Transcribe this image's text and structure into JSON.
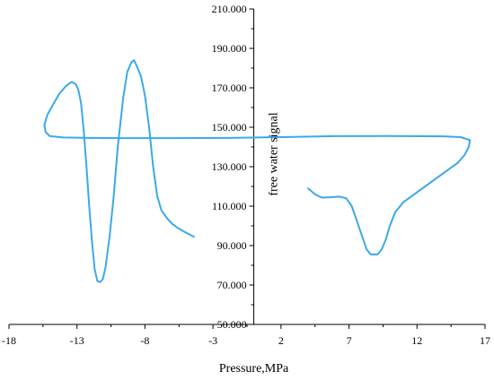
{
  "chart_data": {
    "type": "line",
    "title": "",
    "xlabel": "Pressure,MPa",
    "ylabel": "free water signal",
    "xlim": [
      -18,
      17
    ],
    "ylim": [
      50,
      210
    ],
    "x_ticks": [
      -18,
      -13,
      -8,
      -3,
      2,
      7,
      12,
      17
    ],
    "x_tick_labels": [
      "-18",
      "-13",
      "-8",
      "-3",
      "2",
      "7",
      "12",
      "17"
    ],
    "y_ticks": [
      50,
      70,
      90,
      110,
      130,
      150,
      170,
      190,
      210
    ],
    "y_tick_labels": [
      "50.000",
      "70.000",
      "90.000",
      "110.000",
      "130.000",
      "150.000",
      "170.000",
      "190.000",
      "210.000"
    ],
    "grid": false,
    "legend": "none",
    "series": [
      {
        "color": "#3aa9ec",
        "points": [
          [
            -4.4,
            94.5
          ],
          [
            -5.1,
            97
          ],
          [
            -5.6,
            99
          ],
          [
            -6.0,
            101
          ],
          [
            -6.4,
            104
          ],
          [
            -6.8,
            108
          ],
          [
            -7.1,
            115
          ],
          [
            -7.4,
            130
          ],
          [
            -7.7,
            150
          ],
          [
            -8.0,
            166
          ],
          [
            -8.3,
            176
          ],
          [
            -8.6,
            181
          ],
          [
            -8.8,
            184
          ],
          [
            -9.0,
            183
          ],
          [
            -9.3,
            178
          ],
          [
            -9.6,
            165
          ],
          [
            -10.0,
            140
          ],
          [
            -10.3,
            115
          ],
          [
            -10.6,
            95
          ],
          [
            -10.9,
            79
          ],
          [
            -11.1,
            73
          ],
          [
            -11.3,
            71.5
          ],
          [
            -11.5,
            72
          ],
          [
            -11.7,
            78
          ],
          [
            -11.9,
            92
          ],
          [
            -12.1,
            110
          ],
          [
            -12.3,
            130
          ],
          [
            -12.5,
            148
          ],
          [
            -12.7,
            162
          ],
          [
            -12.9,
            169
          ],
          [
            -13.1,
            172
          ],
          [
            -13.4,
            173
          ],
          [
            -13.8,
            171
          ],
          [
            -14.3,
            167
          ],
          [
            -14.8,
            161
          ],
          [
            -15.2,
            156
          ],
          [
            -15.4,
            151
          ],
          [
            -15.3,
            147.5
          ],
          [
            -15.0,
            145.5
          ],
          [
            -14.0,
            144.8
          ],
          [
            -12.5,
            144.7
          ],
          [
            -10.0,
            144.5
          ],
          [
            -6.0,
            144.5
          ],
          [
            -2.0,
            144.6
          ],
          [
            2.0,
            145.0
          ],
          [
            6.0,
            145.5
          ],
          [
            10.0,
            145.6
          ],
          [
            14.0,
            145.4
          ],
          [
            15.2,
            145.0
          ],
          [
            15.9,
            143.5
          ],
          [
            15.8,
            140
          ],
          [
            15.5,
            136
          ],
          [
            15.0,
            132
          ],
          [
            14.0,
            127
          ],
          [
            13.0,
            122
          ],
          [
            12.0,
            117
          ],
          [
            11.0,
            112
          ],
          [
            10.4,
            107
          ],
          [
            10.0,
            100
          ],
          [
            9.7,
            93
          ],
          [
            9.4,
            88
          ],
          [
            9.1,
            85.5
          ],
          [
            8.6,
            85.5
          ],
          [
            8.3,
            88
          ],
          [
            8.0,
            94
          ],
          [
            7.6,
            102
          ],
          [
            7.2,
            110
          ],
          [
            6.8,
            114
          ],
          [
            6.3,
            114.8
          ],
          [
            5.6,
            114.5
          ],
          [
            5.0,
            114.3
          ],
          [
            4.5,
            116
          ],
          [
            4.0,
            119
          ]
        ]
      }
    ]
  }
}
